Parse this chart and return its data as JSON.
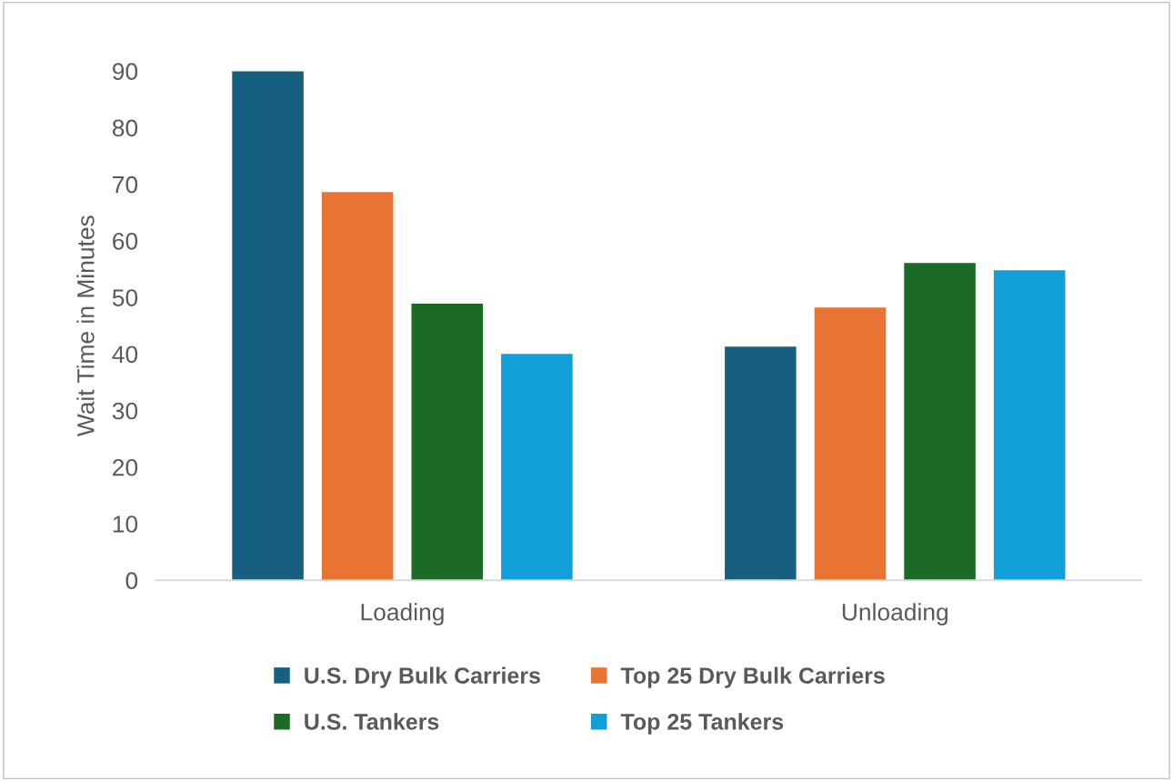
{
  "chart_data": {
    "type": "bar",
    "ylabel": "Wait Time in Minutes",
    "categories": [
      "Loading",
      "Unloading"
    ],
    "series": [
      {
        "name": "U.S. Dry Bulk Carriers",
        "color": "#175f80",
        "values": [
          90,
          41.3
        ]
      },
      {
        "name": "Top 25 Dry Bulk Carriers",
        "color": "#e97333",
        "values": [
          68.6,
          48.2
        ]
      },
      {
        "name": "U.S. Tankers",
        "color": "#1b6b25",
        "values": [
          48.9,
          56.1
        ]
      },
      {
        "name": "Top 25 Tankers",
        "color": "#129fd8",
        "values": [
          40.0,
          54.8
        ]
      }
    ],
    "ylim": [
      0,
      90
    ],
    "yticks": [
      0,
      10,
      20,
      30,
      40,
      50,
      60,
      70,
      80,
      90
    ],
    "grid": false,
    "legend": "bottom"
  }
}
